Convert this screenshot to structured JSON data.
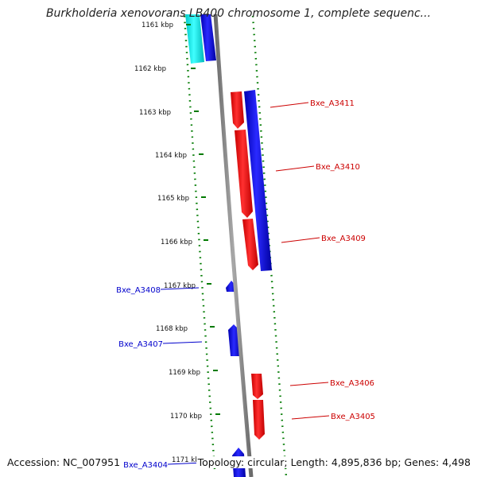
{
  "title": "Burkholderia xenovorans LB400 chromosome 1, complete sequenc...",
  "colors": {
    "forward_strand": "#0000ee",
    "reverse_strand": "#ff0000",
    "highlight_gene": "#00e5e5",
    "backbone": "#808080",
    "ticks": "#007a00",
    "forward_label": "#0000cc",
    "reverse_label": "#cc0000"
  },
  "ruler": [
    {
      "label": "1161 kbp"
    },
    {
      "label": "1162 kbp"
    },
    {
      "label": "1163 kbp"
    },
    {
      "label": "1164 kbp"
    },
    {
      "label": "1165 kbp"
    },
    {
      "label": "1166 kbp"
    },
    {
      "label": "1167 kbp"
    },
    {
      "label": "1168 kbp"
    },
    {
      "label": "1169 kbp"
    },
    {
      "label": "1170 kbp"
    },
    {
      "label": "1171 kbp"
    }
  ],
  "gene_labels": [
    {
      "name": "Bxe_A3411",
      "strand": "reverse"
    },
    {
      "name": "Bxe_A3410",
      "strand": "reverse"
    },
    {
      "name": "Bxe_A3409",
      "strand": "reverse"
    },
    {
      "name": "Bxe_A3408",
      "strand": "forward"
    },
    {
      "name": "Bxe_A3407",
      "strand": "forward"
    },
    {
      "name": "Bxe_A3406",
      "strand": "reverse"
    },
    {
      "name": "Bxe_A3405",
      "strand": "reverse"
    },
    {
      "name": "Bxe_A3404",
      "strand": "forward"
    }
  ],
  "footer": {
    "accession": "Accession: NC_007951",
    "summary": "Topology: circular; Length: 4,895,836 bp; Genes: 4,498"
  }
}
